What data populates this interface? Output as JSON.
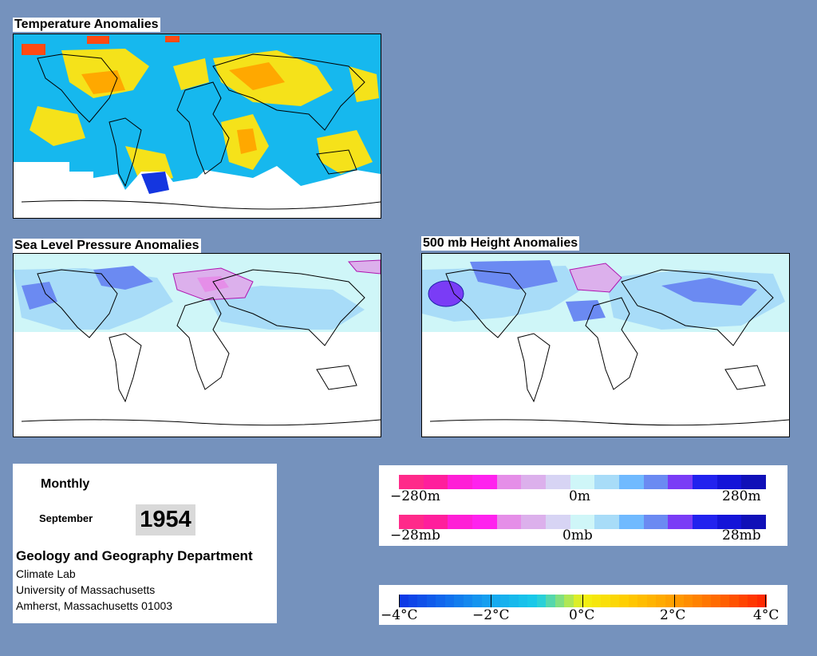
{
  "maps": {
    "temperature": {
      "title": "Temperature Anomalies"
    },
    "slp": {
      "title": "Sea Level Pressure Anomalies"
    },
    "height": {
      "title": "500 mb Height Anomalies"
    }
  },
  "info": {
    "period": "Monthly",
    "month": "September",
    "year": "1954",
    "department": "Geology and Geography Department",
    "lab": "Climate Lab",
    "university": "University of Massachusetts",
    "address": "Amherst, Massachusetts 01003"
  },
  "legends": {
    "height_scale": {
      "min": "−280m",
      "mid": "0m",
      "max": "280m"
    },
    "pressure_scale": {
      "min": "−28mb",
      "mid": "0mb",
      "max": "28mb"
    },
    "temp_scale": {
      "labels": [
        "−4°C",
        "−2°C",
        "0°C",
        "2°C",
        "4°C"
      ]
    }
  },
  "colors": {
    "background": "#7592bd",
    "pressure_palette": [
      "#ff2a8a",
      "#ff1f9c",
      "#ff1fd6",
      "#ff22ee",
      "#e58ee8",
      "#dcb0ec",
      "#d7d4f4",
      "#cff6f8",
      "#a8dcf8",
      "#70baff",
      "#6b8af2",
      "#7a3cf6",
      "#2222ee",
      "#1414d8",
      "#1010b8"
    ],
    "temp_palette": [
      "#0e3ae6",
      "#1070ee",
      "#16a8f0",
      "#18cde8",
      "#f2f212",
      "#ffcc00",
      "#ffa000",
      "#ff6a00",
      "#ff2a00"
    ]
  }
}
